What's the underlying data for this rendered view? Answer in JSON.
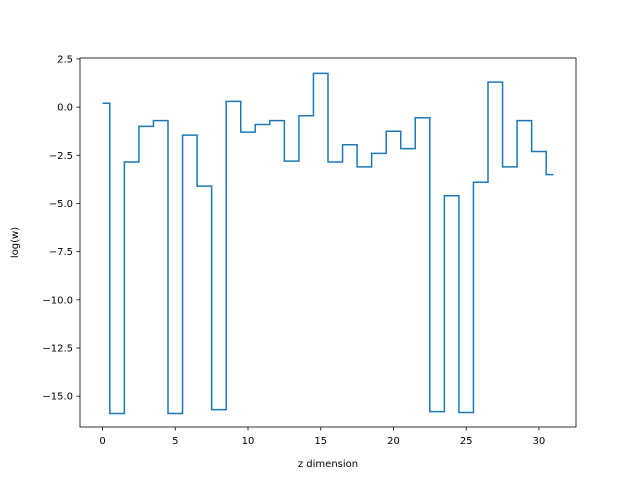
{
  "chart_data": {
    "type": "line",
    "style": "step-mid",
    "xlabel": "z dimension",
    "ylabel": "log(w)",
    "xlim": [
      -1.55,
      32.55
    ],
    "ylim": [
      -16.6,
      2.55
    ],
    "xticks": [
      0,
      5,
      10,
      15,
      20,
      25,
      30
    ],
    "yticks": [
      2.5,
      0.0,
      -2.5,
      -5.0,
      -7.5,
      -10.0,
      -12.5,
      -15.0
    ],
    "ytick_labels": [
      "2.5",
      "0.0",
      "−2.5",
      "−5.0",
      "−7.5",
      "−10.0",
      "−12.5",
      "−15.0"
    ],
    "grid": false,
    "color": "#1f77b4",
    "series": [
      {
        "x": [
          0,
          1,
          2,
          3,
          4,
          5,
          6,
          7,
          8,
          9,
          10,
          11,
          12,
          13,
          14,
          15,
          16,
          17,
          18,
          19,
          20,
          21,
          22,
          23,
          24,
          25,
          26,
          27,
          28,
          29,
          30,
          31
        ],
        "values": [
          0.2,
          -15.9,
          -2.85,
          -1.0,
          -0.7,
          -15.9,
          -1.45,
          -4.1,
          -15.7,
          0.3,
          -1.3,
          -0.9,
          -0.7,
          -2.8,
          -0.45,
          1.75,
          -2.85,
          -1.95,
          -3.1,
          -2.4,
          -1.25,
          -2.15,
          -0.55,
          -15.8,
          -4.6,
          -15.85,
          -3.9,
          1.3,
          -3.1,
          -0.7,
          -2.3,
          -3.5
        ]
      }
    ]
  }
}
